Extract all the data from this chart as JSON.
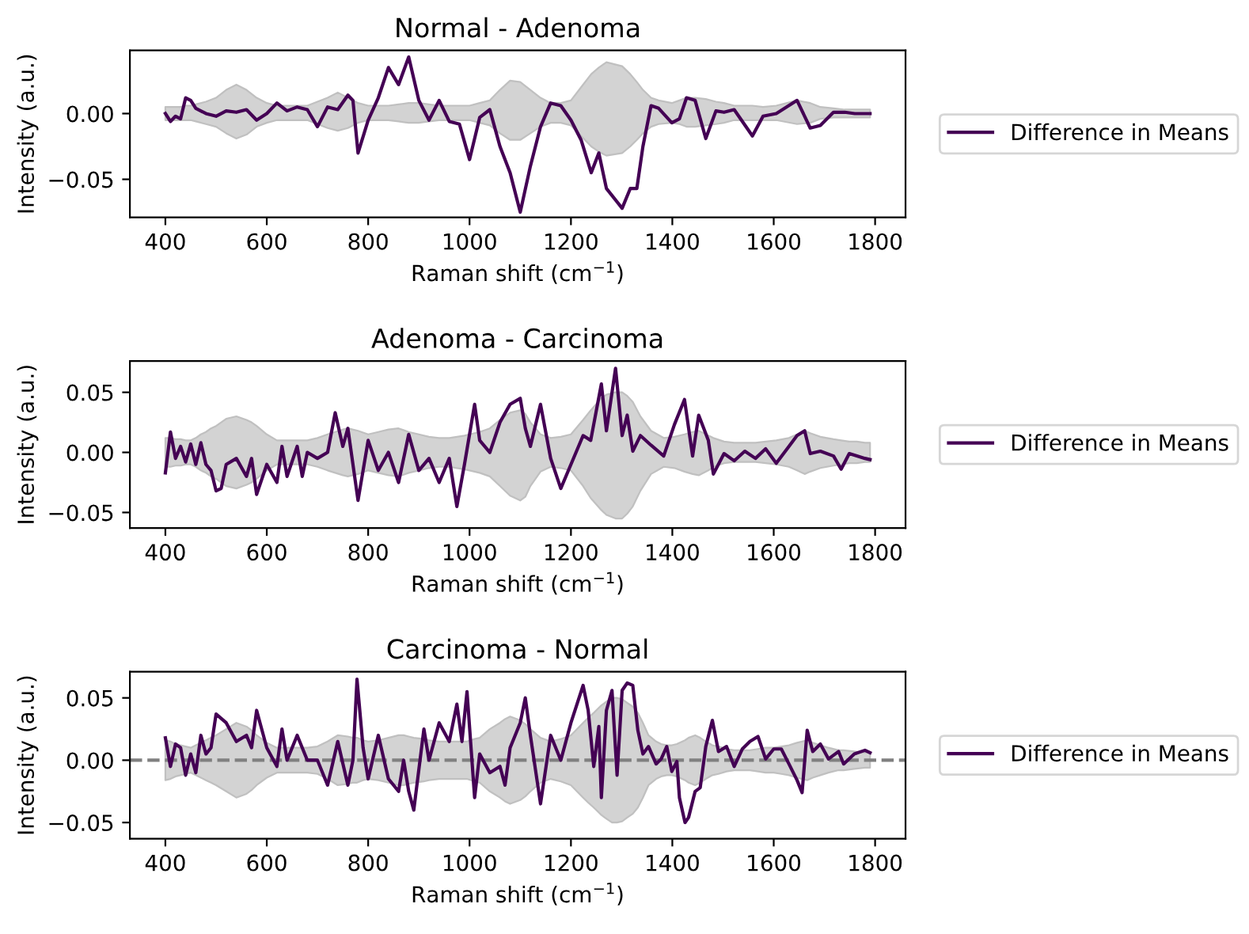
{
  "chart_data": [
    {
      "type": "line",
      "title": "Normal - Adenoma",
      "xlabel": "Raman shift (cm$^{−1}$)",
      "ylabel": "Intensity (a.u.)",
      "xlim": [
        330,
        1860
      ],
      "xticks": [
        400,
        600,
        800,
        1000,
        1200,
        1400,
        1600,
        1800
      ],
      "ylim": [
        -0.079,
        0.048
      ],
      "yticks": [
        {
          "value": -0.05,
          "label": "−0.05"
        },
        {
          "value": 0,
          "label": "0.00"
        }
      ],
      "legend": "right",
      "grid": false,
      "series": [
        {
          "name": "Difference in Means",
          "color": "#440154",
          "x": [
            400,
            410,
            420,
            430,
            440,
            450,
            460,
            480,
            500,
            520,
            540,
            560,
            580,
            600,
            620,
            640,
            660,
            680,
            700,
            720,
            740,
            760,
            770,
            780,
            800,
            820,
            840,
            860,
            880,
            900,
            920,
            940,
            960,
            980,
            1000,
            1020,
            1040,
            1060,
            1080,
            1100,
            1120,
            1140,
            1160,
            1180,
            1200,
            1220,
            1240,
            1255,
            1270,
            1301,
            1317,
            1330,
            1342,
            1358,
            1373,
            1399,
            1414,
            1428,
            1445,
            1466,
            1486,
            1502,
            1522,
            1558,
            1579,
            1605,
            1646,
            1672,
            1692,
            1718,
            1740,
            1760,
            1780,
            1790
          ],
          "values": [
            0.0,
            -0.006,
            -0.002,
            -0.004,
            0.012,
            0.01,
            0.004,
            0.0,
            -0.002,
            0.002,
            0.001,
            0.003,
            -0.005,
            0.0,
            0.008,
            0.002,
            0.005,
            0.003,
            -0.01,
            0.005,
            0.003,
            0.014,
            0.01,
            -0.03,
            -0.005,
            0.012,
            0.035,
            0.022,
            0.043,
            0.01,
            -0.005,
            0.01,
            -0.006,
            -0.008,
            -0.035,
            -0.003,
            0.003,
            -0.025,
            -0.045,
            -0.075,
            -0.04,
            -0.01,
            0.008,
            0.006,
            -0.005,
            -0.02,
            -0.045,
            -0.03,
            -0.057,
            -0.072,
            -0.057,
            -0.057,
            -0.025,
            0.006,
            0.004,
            -0.007,
            -0.004,
            0.012,
            0.01,
            -0.019,
            0.002,
            0.001,
            0.003,
            -0.017,
            -0.002,
            0.0,
            0.01,
            -0.011,
            -0.009,
            0.001,
            0.001,
            0.0,
            0.0,
            0.0
          ],
          "upper": [
            0.005,
            0.005,
            0.005,
            0.005,
            0.006,
            0.006,
            0.007,
            0.009,
            0.012,
            0.018,
            0.022,
            0.018,
            0.012,
            0.008,
            0.006,
            0.006,
            0.006,
            0.006,
            0.009,
            0.012,
            0.016,
            0.012,
            0.01,
            0.008,
            0.006,
            0.006,
            0.006,
            0.007,
            0.008,
            0.008,
            0.007,
            0.006,
            0.006,
            0.006,
            0.006,
            0.008,
            0.01,
            0.018,
            0.025,
            0.024,
            0.018,
            0.012,
            0.008,
            0.008,
            0.01,
            0.02,
            0.03,
            0.035,
            0.039,
            0.036,
            0.03,
            0.024,
            0.018,
            0.012,
            0.01,
            0.008,
            0.01,
            0.012,
            0.012,
            0.011,
            0.009,
            0.008,
            0.006,
            0.006,
            0.005,
            0.006,
            0.01,
            0.008,
            0.005,
            0.004,
            0.003,
            0.003,
            0.003,
            0.003
          ],
          "lower": [
            -0.005,
            -0.005,
            -0.005,
            -0.005,
            -0.005,
            -0.005,
            -0.006,
            -0.008,
            -0.01,
            -0.015,
            -0.019,
            -0.016,
            -0.01,
            -0.007,
            -0.005,
            -0.005,
            -0.005,
            -0.005,
            -0.008,
            -0.011,
            -0.013,
            -0.011,
            -0.009,
            -0.007,
            -0.005,
            -0.005,
            -0.005,
            -0.006,
            -0.007,
            -0.007,
            -0.006,
            -0.005,
            -0.005,
            -0.005,
            -0.005,
            -0.007,
            -0.009,
            -0.015,
            -0.02,
            -0.02,
            -0.015,
            -0.01,
            -0.007,
            -0.007,
            -0.009,
            -0.017,
            -0.025,
            -0.029,
            -0.032,
            -0.03,
            -0.025,
            -0.02,
            -0.015,
            -0.01,
            -0.008,
            -0.007,
            -0.008,
            -0.01,
            -0.01,
            -0.009,
            -0.008,
            -0.007,
            -0.005,
            -0.005,
            -0.005,
            -0.005,
            -0.008,
            -0.007,
            -0.004,
            -0.003,
            -0.003,
            -0.003,
            -0.003,
            -0.003
          ]
        }
      ]
    },
    {
      "type": "line",
      "title": "Adenoma - Carcinoma",
      "xlabel": "Raman shift (cm$^{−1}$)",
      "ylabel": "Intensity (a.u.)",
      "xlim": [
        330,
        1860
      ],
      "xticks": [
        400,
        600,
        800,
        1000,
        1200,
        1400,
        1600,
        1800
      ],
      "ylim": [
        -0.063,
        0.076
      ],
      "yticks": [
        {
          "value": -0.05,
          "label": "−0.05"
        },
        {
          "value": 0,
          "label": "0.00"
        },
        {
          "value": 0.05,
          "label": "0.05"
        }
      ],
      "legend": "right",
      "grid": false,
      "series": [
        {
          "name": "Difference in Means",
          "color": "#440154",
          "x": [
            400,
            410,
            420,
            430,
            440,
            450,
            460,
            470,
            480,
            490,
            500,
            510,
            520,
            540,
            560,
            570,
            580,
            600,
            620,
            630,
            640,
            660,
            670,
            680,
            700,
            720,
            735,
            750,
            760,
            780,
            800,
            820,
            840,
            860,
            880,
            900,
            920,
            940,
            960,
            975,
            990,
            1010,
            1020,
            1040,
            1060,
            1080,
            1100,
            1110,
            1120,
            1140,
            1160,
            1180,
            1200,
            1224,
            1239,
            1260,
            1270,
            1288,
            1301,
            1311,
            1322,
            1337,
            1358,
            1383,
            1404,
            1424,
            1440,
            1452,
            1471,
            1481,
            1502,
            1522,
            1543,
            1564,
            1584,
            1605,
            1630,
            1646,
            1661,
            1672,
            1692,
            1718,
            1733,
            1749,
            1764,
            1780,
            1790
          ],
          "values": [
            -0.017,
            0.017,
            -0.005,
            0.005,
            -0.008,
            0.007,
            -0.01,
            0.008,
            -0.01,
            -0.015,
            -0.032,
            -0.03,
            -0.01,
            -0.005,
            -0.02,
            -0.005,
            -0.035,
            -0.01,
            -0.025,
            0.005,
            -0.02,
            0.005,
            -0.02,
            0.0,
            -0.005,
            0.0,
            0.033,
            0.005,
            0.02,
            -0.04,
            0.01,
            -0.015,
            0.0,
            -0.025,
            0.015,
            -0.015,
            -0.005,
            -0.025,
            -0.005,
            -0.045,
            -0.01,
            0.04,
            0.01,
            0.0,
            0.025,
            0.04,
            0.045,
            0.02,
            0.005,
            0.04,
            -0.005,
            -0.03,
            -0.01,
            0.014,
            0.01,
            0.057,
            0.018,
            0.07,
            0.014,
            0.031,
            0.001,
            0.014,
            0.006,
            -0.003,
            0.023,
            0.044,
            -0.003,
            0.031,
            0.01,
            -0.018,
            -0.001,
            -0.007,
            0.001,
            -0.005,
            0.003,
            -0.009,
            0.005,
            0.014,
            0.018,
            -0.001,
            0.001,
            -0.003,
            -0.014,
            -0.001,
            -0.003,
            -0.005,
            -0.006
          ],
          "upper": [
            0.012,
            0.012,
            0.011,
            0.011,
            0.01,
            0.01,
            0.012,
            0.015,
            0.017,
            0.02,
            0.022,
            0.025,
            0.028,
            0.03,
            0.027,
            0.025,
            0.022,
            0.015,
            0.01,
            0.01,
            0.01,
            0.01,
            0.01,
            0.01,
            0.012,
            0.015,
            0.017,
            0.019,
            0.02,
            0.018,
            0.015,
            0.017,
            0.019,
            0.02,
            0.017,
            0.015,
            0.013,
            0.012,
            0.012,
            0.013,
            0.014,
            0.016,
            0.017,
            0.02,
            0.027,
            0.033,
            0.035,
            0.032,
            0.025,
            0.015,
            0.012,
            0.013,
            0.015,
            0.027,
            0.035,
            0.045,
            0.048,
            0.05,
            0.05,
            0.047,
            0.042,
            0.03,
            0.018,
            0.012,
            0.013,
            0.015,
            0.017,
            0.018,
            0.014,
            0.012,
            0.009,
            0.008,
            0.008,
            0.008,
            0.009,
            0.01,
            0.012,
            0.015,
            0.018,
            0.016,
            0.013,
            0.011,
            0.01,
            0.009,
            0.009,
            0.008,
            0.008
          ],
          "lower": [
            -0.012,
            -0.012,
            -0.011,
            -0.011,
            -0.01,
            -0.01,
            -0.012,
            -0.015,
            -0.017,
            -0.02,
            -0.022,
            -0.025,
            -0.028,
            -0.03,
            -0.027,
            -0.025,
            -0.022,
            -0.015,
            -0.01,
            -0.01,
            -0.01,
            -0.01,
            -0.01,
            -0.01,
            -0.012,
            -0.015,
            -0.017,
            -0.019,
            -0.02,
            -0.018,
            -0.015,
            -0.017,
            -0.019,
            -0.02,
            -0.017,
            -0.015,
            -0.013,
            -0.012,
            -0.012,
            -0.013,
            -0.014,
            -0.016,
            -0.017,
            -0.02,
            -0.028,
            -0.036,
            -0.04,
            -0.037,
            -0.028,
            -0.016,
            -0.012,
            -0.013,
            -0.015,
            -0.028,
            -0.038,
            -0.048,
            -0.052,
            -0.055,
            -0.055,
            -0.051,
            -0.045,
            -0.032,
            -0.018,
            -0.012,
            -0.013,
            -0.016,
            -0.018,
            -0.019,
            -0.015,
            -0.012,
            -0.009,
            -0.008,
            -0.008,
            -0.008,
            -0.009,
            -0.01,
            -0.012,
            -0.015,
            -0.018,
            -0.016,
            -0.013,
            -0.011,
            -0.01,
            -0.009,
            -0.009,
            -0.008,
            -0.008
          ]
        }
      ]
    },
    {
      "type": "line",
      "title": "Carcinoma - Normal",
      "xlabel": "Raman shift (cm$^{−1}$)",
      "ylabel": "Intensity (a.u.)",
      "xlim": [
        330,
        1860
      ],
      "xticks": [
        400,
        600,
        800,
        1000,
        1200,
        1400,
        1600,
        1800
      ],
      "ylim": [
        -0.063,
        0.071
      ],
      "yticks": [
        {
          "value": -0.05,
          "label": "−0.05"
        },
        {
          "value": 0,
          "label": "0.00"
        },
        {
          "value": 0.05,
          "label": "0.05"
        }
      ],
      "legend": "right",
      "grid": false,
      "ref_lines": [
        {
          "axis": "y",
          "value": 0,
          "color": "#808080",
          "line_style": "dashed"
        }
      ],
      "series": [
        {
          "name": "Difference in Means",
          "color": "#440154",
          "x": [
            400,
            410,
            420,
            430,
            440,
            450,
            460,
            470,
            480,
            490,
            500,
            520,
            540,
            560,
            570,
            580,
            600,
            620,
            630,
            640,
            660,
            680,
            700,
            720,
            740,
            760,
            770,
            778,
            790,
            800,
            820,
            840,
            860,
            870,
            880,
            890,
            910,
            920,
            940,
            960,
            975,
            985,
            995,
            1010,
            1020,
            1040,
            1060,
            1070,
            1080,
            1100,
            1110,
            1120,
            1140,
            1160,
            1180,
            1200,
            1224,
            1234,
            1245,
            1255,
            1260,
            1270,
            1281,
            1291,
            1301,
            1311,
            1322,
            1332,
            1342,
            1353,
            1368,
            1378,
            1389,
            1399,
            1409,
            1414,
            1425,
            1432,
            1445,
            1455,
            1466,
            1479,
            1491,
            1507,
            1522,
            1538,
            1553,
            1569,
            1584,
            1600,
            1615,
            1630,
            1646,
            1656,
            1666,
            1677,
            1692,
            1708,
            1728,
            1738,
            1759,
            1780,
            1790
          ],
          "values": [
            0.018,
            -0.005,
            0.013,
            0.01,
            -0.012,
            0.005,
            -0.01,
            0.02,
            0.005,
            0.01,
            0.037,
            0.03,
            0.015,
            0.02,
            0.01,
            0.04,
            0.01,
            -0.005,
            0.025,
            0.0,
            0.02,
            0.0,
            0.0,
            -0.02,
            0.015,
            -0.02,
            0.0,
            0.065,
            0.01,
            -0.015,
            0.02,
            -0.015,
            -0.025,
            0.0,
            -0.025,
            -0.04,
            0.025,
            0.0,
            0.03,
            0.015,
            0.045,
            0.015,
            0.055,
            -0.03,
            0.005,
            -0.01,
            -0.005,
            -0.02,
            0.01,
            0.03,
            0.05,
            0.02,
            -0.035,
            0.02,
            0.0,
            0.03,
            0.06,
            0.04,
            -0.005,
            0.027,
            -0.03,
            0.04,
            0.056,
            -0.012,
            0.056,
            0.062,
            0.06,
            0.024,
            0.005,
            0.011,
            -0.003,
            0.001,
            0.011,
            -0.009,
            -0.001,
            -0.03,
            -0.05,
            -0.046,
            -0.025,
            -0.022,
            0.011,
            0.032,
            0.007,
            0.011,
            -0.005,
            0.009,
            0.015,
            0.019,
            0.001,
            0.009,
            0.009,
            -0.003,
            -0.016,
            -0.026,
            0.024,
            0.007,
            0.013,
            0.001,
            0.007,
            -0.003,
            0.005,
            0.008,
            0.006
          ],
          "upper": [
            0.016,
            0.015,
            0.013,
            0.012,
            0.011,
            0.01,
            0.012,
            0.014,
            0.016,
            0.018,
            0.02,
            0.025,
            0.03,
            0.027,
            0.024,
            0.02,
            0.014,
            0.01,
            0.01,
            0.01,
            0.01,
            0.01,
            0.011,
            0.015,
            0.02,
            0.019,
            0.018,
            0.018,
            0.016,
            0.015,
            0.016,
            0.018,
            0.02,
            0.02,
            0.019,
            0.018,
            0.017,
            0.016,
            0.015,
            0.015,
            0.015,
            0.015,
            0.015,
            0.017,
            0.018,
            0.025,
            0.03,
            0.033,
            0.035,
            0.032,
            0.029,
            0.025,
            0.018,
            0.015,
            0.017,
            0.02,
            0.03,
            0.034,
            0.038,
            0.042,
            0.044,
            0.047,
            0.05,
            0.05,
            0.049,
            0.046,
            0.043,
            0.038,
            0.03,
            0.02,
            0.015,
            0.013,
            0.012,
            0.012,
            0.013,
            0.014,
            0.016,
            0.018,
            0.02,
            0.018,
            0.015,
            0.012,
            0.011,
            0.009,
            0.008,
            0.008,
            0.008,
            0.009,
            0.01,
            0.01,
            0.011,
            0.012,
            0.014,
            0.015,
            0.016,
            0.014,
            0.012,
            0.01,
            0.008,
            0.008,
            0.007,
            0.006,
            0.006
          ],
          "lower": [
            -0.016,
            -0.015,
            -0.013,
            -0.012,
            -0.011,
            -0.01,
            -0.012,
            -0.014,
            -0.016,
            -0.018,
            -0.02,
            -0.025,
            -0.03,
            -0.027,
            -0.024,
            -0.02,
            -0.014,
            -0.01,
            -0.01,
            -0.01,
            -0.01,
            -0.01,
            -0.011,
            -0.015,
            -0.02,
            -0.019,
            -0.018,
            -0.018,
            -0.016,
            -0.015,
            -0.016,
            -0.018,
            -0.02,
            -0.02,
            -0.019,
            -0.018,
            -0.017,
            -0.016,
            -0.015,
            -0.015,
            -0.015,
            -0.015,
            -0.015,
            -0.017,
            -0.018,
            -0.025,
            -0.03,
            -0.033,
            -0.035,
            -0.032,
            -0.029,
            -0.025,
            -0.018,
            -0.015,
            -0.017,
            -0.02,
            -0.03,
            -0.034,
            -0.038,
            -0.042,
            -0.044,
            -0.047,
            -0.05,
            -0.05,
            -0.049,
            -0.046,
            -0.043,
            -0.038,
            -0.03,
            -0.02,
            -0.015,
            -0.013,
            -0.012,
            -0.012,
            -0.013,
            -0.014,
            -0.016,
            -0.018,
            -0.02,
            -0.018,
            -0.015,
            -0.012,
            -0.011,
            -0.009,
            -0.008,
            -0.008,
            -0.008,
            -0.009,
            -0.01,
            -0.01,
            -0.011,
            -0.012,
            -0.014,
            -0.015,
            -0.016,
            -0.014,
            -0.012,
            -0.01,
            -0.008,
            -0.008,
            -0.007,
            -0.006,
            -0.006
          ]
        }
      ]
    }
  ]
}
